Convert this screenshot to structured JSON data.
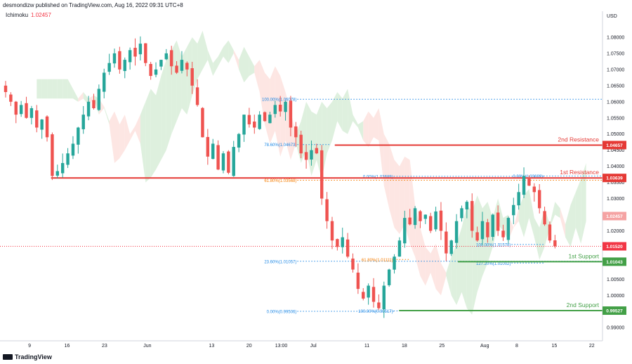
{
  "header": {
    "published": "desmondizw published on TradingView.com, Aug 16, 2022 09:31 UTC+8",
    "indicator_name": "Ichimoku",
    "indicator_value": "1.02457"
  },
  "footer": {
    "brand": "TradingView"
  },
  "colors": {
    "bull": "#26a69a",
    "bear": "#ef5350",
    "resistance": "#e53935",
    "support": "#43a047",
    "fib": "#1e88e5",
    "fib_orange": "#f57c00",
    "price_dotted": "#f23645",
    "cloud_bear": "#fde0dc",
    "cloud_bull": "#d6ecd6"
  },
  "chart_data": {
    "type": "candlestick",
    "currency_label": "USD",
    "ylim": [
      0.987,
      1.085
    ],
    "y_ticks": [
      "1.08000",
      "1.07500",
      "1.07000",
      "1.06500",
      "1.06000",
      "1.05500",
      "1.05000",
      "1.04500",
      "1.04000",
      "1.03500",
      "1.03000",
      "1.02500",
      "1.02000",
      "1.01500",
      "1.01000",
      "1.00500",
      "1.00000",
      "0.99500",
      "0.99000"
    ],
    "x_ticks": [
      {
        "label": "9",
        "t": 5
      },
      {
        "label": "16",
        "t": 12
      },
      {
        "label": "23",
        "t": 19
      },
      {
        "label": "Jun",
        "t": 27
      },
      {
        "label": "13",
        "t": 39
      },
      {
        "label": "20",
        "t": 46
      },
      {
        "label": "13:00",
        "t": 52
      },
      {
        "label": "Jul",
        "t": 58
      },
      {
        "label": "11",
        "t": 68
      },
      {
        "label": "18",
        "t": 75
      },
      {
        "label": "25",
        "t": 82
      },
      {
        "label": "Aug",
        "t": 90
      },
      {
        "label": "8",
        "t": 96
      },
      {
        "label": "15",
        "t": 103
      },
      {
        "label": "22",
        "t": 110
      }
    ],
    "t_range": [
      0,
      112
    ],
    "candles_close": [
      1.063,
      1.06,
      1.056,
      1.059,
      1.055,
      1.058,
      1.052,
      1.0545,
      1.049,
      1.037,
      1.0385,
      1.041,
      1.044,
      1.047,
      1.052,
      1.056,
      1.06,
      1.058,
      1.064,
      1.069,
      1.072,
      1.075,
      1.07,
      1.073,
      1.076,
      1.074,
      1.078,
      1.072,
      1.068,
      1.07,
      1.073,
      1.075,
      1.071,
      1.069,
      1.073,
      1.07,
      1.065,
      1.059,
      1.049,
      1.043,
      1.047,
      1.039,
      1.044,
      1.038,
      1.046,
      1.05,
      1.056,
      1.053,
      1.052,
      1.056,
      1.054,
      1.056,
      1.059,
      1.057,
      1.06,
      1.052,
      1.049,
      1.044,
      1.042,
      1.045,
      1.044,
      1.03,
      1.023,
      1.017,
      1.015,
      1.018,
      1.012,
      1.008,
      1.002,
      0.999,
      1.003,
      0.998,
      0.996,
      1.003,
      1.008,
      1.012,
      1.017,
      1.024,
      1.022,
      1.027,
      1.023,
      1.025,
      1.02,
      1.026,
      1.02,
      1.013,
      1.017,
      1.023,
      1.027,
      1.029,
      1.02,
      1.017,
      1.023,
      1.018,
      1.025,
      1.02,
      1.018,
      1.024,
      1.028,
      1.032,
      1.037,
      1.034,
      1.032,
      1.027,
      1.022,
      1.017,
      1.0152
    ],
    "current_price": "1.02457",
    "levels": [
      {
        "kind": "resistance",
        "name": "2nd Resistance",
        "price": 1.04657,
        "label": "1.04657",
        "t_start": 62
      },
      {
        "kind": "resistance",
        "name": "1st Resistance",
        "price": 1.03639,
        "label": "1.03639",
        "t_start": 9
      },
      {
        "kind": "support",
        "name": "1st Support",
        "price": 1.01043,
        "label": "1.01043",
        "t_start": 85
      },
      {
        "kind": "support",
        "name": "2nd Support",
        "price": 0.99527,
        "label": "0.99527",
        "t_start": 74
      }
    ],
    "last_price": {
      "price": 1.0152,
      "label": "1.01520"
    },
    "fib_labels": [
      {
        "text": "100.00%(1.06078)",
        "price": 1.06078,
        "t_start": 55,
        "t_end": 112,
        "color": "fib"
      },
      {
        "text": "78.60%(1.04673)",
        "price": 1.04673,
        "t_start": 55,
        "t_end": 61,
        "color": "fib"
      },
      {
        "text": "61.80%(1.03568)",
        "price": 1.03568,
        "t_start": 55,
        "t_end": 112,
        "color": "fib_orange"
      },
      {
        "text": "23.60%(1.01057)",
        "price": 1.01057,
        "t_start": 55,
        "t_end": 112,
        "color": "fib"
      },
      {
        "text": "0.00%(0.99506)",
        "price": 0.99506,
        "t_start": 55,
        "t_end": 73,
        "color": "fib"
      },
      {
        "text": "0.00%(1.03689)",
        "price": 1.03689,
        "t_start": 73,
        "t_end": 101,
        "color": "fib"
      },
      {
        "text": "0.00%(1.03699)",
        "price": 1.03699,
        "t_start": 101,
        "t_end": 112,
        "color": "fib"
      },
      {
        "text": "61.80%(1.01111)",
        "price": 1.01111,
        "t_start": 73,
        "t_end": 76,
        "color": "fib_orange"
      },
      {
        "text": "100.00%(0.99517)",
        "price": 0.99517,
        "t_start": 73,
        "t_end": 76,
        "color": "fib"
      },
      {
        "text": "100.00%(1.01578)",
        "price": 1.01578,
        "t_start": 95,
        "t_end": 101,
        "color": "fib"
      },
      {
        "text": "127.20%(1.01002)",
        "price": 1.01002,
        "t_start": 95,
        "t_end": 101,
        "color": "fib"
      }
    ],
    "annotations": [
      "2nd Resistance",
      "1st Resistance",
      "1st Support",
      "2nd Support"
    ]
  }
}
